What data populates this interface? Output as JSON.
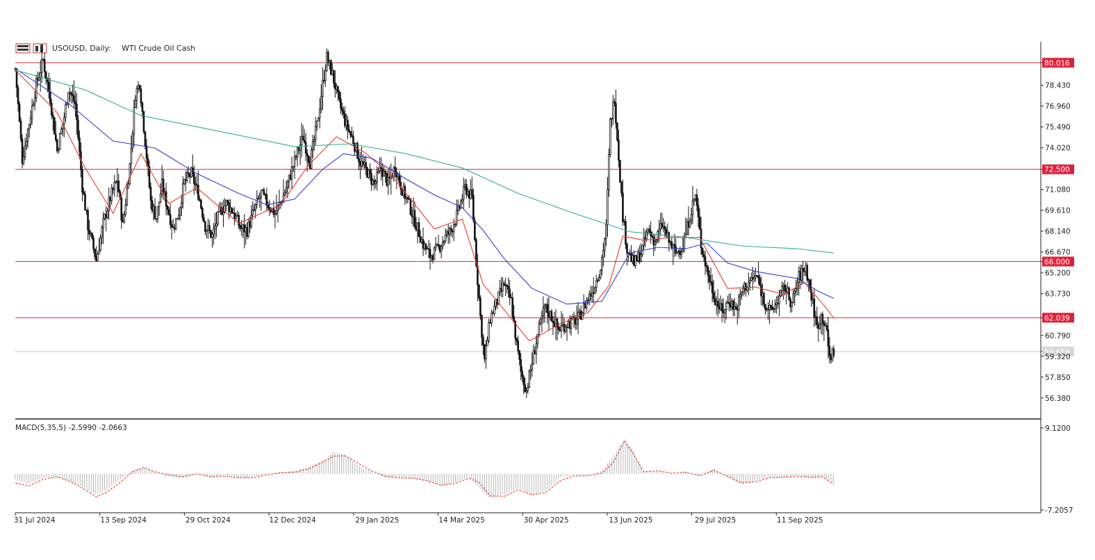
{
  "header": {
    "symbol": "USOUSD, Daily:",
    "name": "WTI Crude Oil Cash",
    "toolbar_icons": [
      "grid-icon",
      "chart-icon"
    ]
  },
  "chart_data": {
    "type": "candlestick",
    "symbol": "USOUSD",
    "timeframe": "Daily",
    "name": "WTI Crude Oil Cash",
    "ylim": [
      54.9,
      81.5
    ],
    "y_ticks": [
      "80.016",
      "78.430",
      "76.960",
      "75.490",
      "74.020",
      "72.500",
      "71.080",
      "69.610",
      "68.140",
      "66.670",
      "66.000",
      "65.200",
      "63.730",
      "62.039",
      "60.790",
      "59.659",
      "59.320",
      "57.850",
      "56.380"
    ],
    "x_ticks": [
      "31 Jul 2024",
      "13 Sep 2024",
      "29 Oct 2024",
      "12 Dec 2024",
      "29 Jan 2025",
      "14 Mar 2025",
      "30 Apr 2025",
      "13 Jun 2025",
      "29 Jul 2025",
      "11 Sep 2025"
    ],
    "horizontal_levels": [
      {
        "value": 80.016,
        "label": "80.016",
        "color": "#e0203a"
      },
      {
        "value": 72.5,
        "label": "72.500",
        "color": "#e0203a"
      },
      {
        "value": 66.0,
        "label": "66.000",
        "color": "#e0203a"
      },
      {
        "value": 62.039,
        "label": "62.039",
        "color": "#e0203a"
      }
    ],
    "current_price": {
      "value": 59.659,
      "label": "59.659"
    },
    "price_path": [
      [
        0,
        79.6
      ],
      [
        5,
        73.2
      ],
      [
        10,
        75.8
      ],
      [
        15,
        78.5
      ],
      [
        20,
        80.2
      ],
      [
        25,
        77.5
      ],
      [
        30,
        73.8
      ],
      [
        35,
        76.2
      ],
      [
        38,
        78.2
      ],
      [
        43,
        77.1
      ],
      [
        48,
        71.3
      ],
      [
        52,
        68.5
      ],
      [
        58,
        66.1
      ],
      [
        63,
        68.7
      ],
      [
        68,
        70.5
      ],
      [
        73,
        71.8
      ],
      [
        77,
        68.5
      ],
      [
        82,
        72.8
      ],
      [
        86,
        77.8
      ],
      [
        89,
        78.6
      ],
      [
        93,
        74.5
      ],
      [
        97,
        70.2
      ],
      [
        101,
        69.1
      ],
      [
        105,
        71.4
      ],
      [
        109,
        69.8
      ],
      [
        113,
        68.3
      ],
      [
        117,
        69.5
      ],
      [
        121,
        71.6
      ],
      [
        126,
        72.2
      ],
      [
        131,
        70.8
      ],
      [
        136,
        68.5
      ],
      [
        141,
        67.8
      ],
      [
        146,
        69.4
      ],
      [
        151,
        70.1
      ],
      [
        156,
        69.5
      ],
      [
        161,
        68.4
      ],
      [
        166,
        68.2
      ],
      [
        171,
        69.6
      ],
      [
        176,
        70.8
      ],
      [
        181,
        70.0
      ],
      [
        186,
        69.4
      ],
      [
        191,
        70.4
      ],
      [
        196,
        71.8
      ],
      [
        201,
        73.4
      ],
      [
        206,
        74.8
      ],
      [
        211,
        73.0
      ],
      [
        216,
        75.6
      ],
      [
        220,
        78.5
      ],
      [
        223,
        80.4
      ],
      [
        227,
        79.2
      ],
      [
        232,
        77.1
      ],
      [
        237,
        75.6
      ],
      [
        242,
        74.5
      ],
      [
        247,
        73.0
      ],
      [
        252,
        72.3
      ],
      [
        257,
        71.4
      ],
      [
        262,
        72.6
      ],
      [
        267,
        71.5
      ],
      [
        272,
        72.7
      ],
      [
        277,
        71.1
      ],
      [
        282,
        70.0
      ],
      [
        287,
        68.6
      ],
      [
        292,
        67.2
      ],
      [
        297,
        66.4
      ],
      [
        302,
        66.8
      ],
      [
        307,
        67.6
      ],
      [
        312,
        68.2
      ],
      [
        317,
        69.5
      ],
      [
        322,
        71.2
      ],
      [
        327,
        70.5
      ],
      [
        330,
        66.0
      ],
      [
        333,
        62.1
      ],
      [
        336,
        59.0
      ],
      [
        340,
        62.0
      ],
      [
        345,
        63.2
      ],
      [
        350,
        64.4
      ],
      [
        355,
        63.2
      ],
      [
        359,
        60.1
      ],
      [
        362,
        58.2
      ],
      [
        366,
        56.9
      ],
      [
        370,
        58.9
      ],
      [
        374,
        60.8
      ],
      [
        379,
        62.8
      ],
      [
        384,
        62.1
      ],
      [
        389,
        61.2
      ],
      [
        394,
        61.6
      ],
      [
        399,
        61.7
      ],
      [
        404,
        62.1
      ],
      [
        409,
        63.2
      ],
      [
        414,
        64.1
      ],
      [
        419,
        65.6
      ],
      [
        423,
        68.3
      ],
      [
        426,
        75.8
      ],
      [
        429,
        77.6
      ],
      [
        432,
        73.4
      ],
      [
        435,
        69.2
      ],
      [
        438,
        66.9
      ],
      [
        443,
        65.8
      ],
      [
        448,
        66.6
      ],
      [
        453,
        68.2
      ],
      [
        458,
        67.4
      ],
      [
        463,
        68.6
      ],
      [
        468,
        67.4
      ],
      [
        473,
        66.6
      ],
      [
        478,
        67.1
      ],
      [
        483,
        69.3
      ],
      [
        487,
        70.7
      ],
      [
        491,
        67.2
      ],
      [
        496,
        65.1
      ],
      [
        501,
        63.4
      ],
      [
        506,
        62.4
      ],
      [
        511,
        63.3
      ],
      [
        516,
        62.6
      ],
      [
        521,
        64.1
      ],
      [
        526,
        64.6
      ],
      [
        531,
        65.0
      ],
      [
        536,
        63.2
      ],
      [
        541,
        62.4
      ],
      [
        546,
        63.3
      ],
      [
        551,
        64.2
      ],
      [
        556,
        63.0
      ],
      [
        561,
        64.9
      ],
      [
        566,
        65.6
      ],
      [
        571,
        63.0
      ],
      [
        574,
        61.4
      ],
      [
        577,
        62.2
      ],
      [
        580,
        61.6
      ],
      [
        583,
        59.2
      ],
      [
        586,
        59.7
      ]
    ],
    "series": [
      {
        "name": "",
        "color": "#e8392f",
        "kind": "ma",
        "points": [
          [
            0,
            79.5
          ],
          [
            30,
            76.5
          ],
          [
            50,
            72.6
          ],
          [
            70,
            69.4
          ],
          [
            90,
            73.6
          ],
          [
            110,
            70.1
          ],
          [
            130,
            71.2
          ],
          [
            160,
            68.7
          ],
          [
            190,
            70.0
          ],
          [
            210,
            72.8
          ],
          [
            230,
            74.8
          ],
          [
            250,
            73.7
          ],
          [
            270,
            72.0
          ],
          [
            300,
            68.3
          ],
          [
            320,
            69.0
          ],
          [
            335,
            64.4
          ],
          [
            350,
            62.6
          ],
          [
            368,
            60.4
          ],
          [
            390,
            61.6
          ],
          [
            410,
            62.4
          ],
          [
            425,
            64.3
          ],
          [
            435,
            67.8
          ],
          [
            450,
            67.5
          ],
          [
            470,
            67.7
          ],
          [
            490,
            67.7
          ],
          [
            510,
            64.1
          ],
          [
            530,
            64.2
          ],
          [
            550,
            63.7
          ],
          [
            565,
            64.5
          ],
          [
            580,
            62.8
          ],
          [
            586,
            62.0
          ]
        ]
      },
      {
        "name": "",
        "color": "#3a3ad4",
        "kind": "ma",
        "points": [
          [
            0,
            79.6
          ],
          [
            40,
            77.0
          ],
          [
            70,
            74.5
          ],
          [
            100,
            74.0
          ],
          [
            130,
            72.2
          ],
          [
            160,
            70.8
          ],
          [
            180,
            70.0
          ],
          [
            200,
            70.4
          ],
          [
            220,
            72.5
          ],
          [
            235,
            73.6
          ],
          [
            255,
            73.3
          ],
          [
            280,
            71.8
          ],
          [
            300,
            70.7
          ],
          [
            320,
            69.8
          ],
          [
            335,
            68.2
          ],
          [
            350,
            66.2
          ],
          [
            370,
            64.1
          ],
          [
            395,
            63.0
          ],
          [
            420,
            63.2
          ],
          [
            440,
            66.6
          ],
          [
            460,
            67.0
          ],
          [
            480,
            66.9
          ],
          [
            495,
            67.3
          ],
          [
            510,
            65.9
          ],
          [
            530,
            65.3
          ],
          [
            560,
            64.8
          ],
          [
            575,
            63.9
          ],
          [
            586,
            63.4
          ]
        ]
      },
      {
        "name": "",
        "color": "#2fae96",
        "kind": "ma",
        "points": [
          [
            0,
            79.5
          ],
          [
            50,
            78.1
          ],
          [
            90,
            76.3
          ],
          [
            140,
            75.3
          ],
          [
            200,
            74.1
          ],
          [
            240,
            74.3
          ],
          [
            280,
            73.6
          ],
          [
            320,
            72.6
          ],
          [
            360,
            70.8
          ],
          [
            400,
            69.4
          ],
          [
            440,
            68.1
          ],
          [
            480,
            67.7
          ],
          [
            520,
            67.1
          ],
          [
            560,
            66.9
          ],
          [
            586,
            66.6
          ]
        ]
      }
    ],
    "macd": {
      "label": "MACD(5,35,5) -2.5990 -2.0663",
      "ylim": [
        -7.2057,
        9.12
      ],
      "y_ticks": [
        "9.1200",
        "-7.2057"
      ],
      "histogram": [
        [
          0,
          -1.2
        ],
        [
          10,
          -2.0
        ],
        [
          20,
          -0.7
        ],
        [
          30,
          -0.6
        ],
        [
          40,
          -1.6
        ],
        [
          50,
          -2.9
        ],
        [
          58,
          -4.1
        ],
        [
          66,
          -3.0
        ],
        [
          74,
          -1.3
        ],
        [
          84,
          0.7
        ],
        [
          92,
          1.3
        ],
        [
          100,
          0.3
        ],
        [
          110,
          -0.5
        ],
        [
          120,
          -0.8
        ],
        [
          130,
          0.1
        ],
        [
          140,
          -0.7
        ],
        [
          150,
          -0.3
        ],
        [
          160,
          -0.9
        ],
        [
          170,
          -0.6
        ],
        [
          180,
          -0.1
        ],
        [
          190,
          0.3
        ],
        [
          200,
          0.6
        ],
        [
          210,
          1.4
        ],
        [
          220,
          2.6
        ],
        [
          228,
          4.4
        ],
        [
          236,
          3.8
        ],
        [
          245,
          1.7
        ],
        [
          255,
          0.4
        ],
        [
          265,
          -0.8
        ],
        [
          275,
          -0.7
        ],
        [
          285,
          -0.9
        ],
        [
          295,
          -1.5
        ],
        [
          305,
          -2.4
        ],
        [
          315,
          -1.7
        ],
        [
          325,
          -0.7
        ],
        [
          332,
          -2.8
        ],
        [
          340,
          -4.9
        ],
        [
          350,
          -4.1
        ],
        [
          360,
          -2.8
        ],
        [
          370,
          -4.3
        ],
        [
          380,
          -3.3
        ],
        [
          390,
          -0.6
        ],
        [
          400,
          -0.2
        ],
        [
          410,
          -0.3
        ],
        [
          420,
          0.6
        ],
        [
          428,
          3.6
        ],
        [
          436,
          6.9
        ],
        [
          442,
          4.8
        ],
        [
          450,
          0.3
        ],
        [
          460,
          0.4
        ],
        [
          470,
          -0.1
        ],
        [
          480,
          0.4
        ],
        [
          490,
          -0.5
        ],
        [
          500,
          1.1
        ],
        [
          510,
          -0.8
        ],
        [
          520,
          -2.1
        ],
        [
          530,
          -1.4
        ],
        [
          540,
          -0.6
        ],
        [
          550,
          -0.8
        ],
        [
          560,
          -0.3
        ],
        [
          570,
          -0.9
        ],
        [
          578,
          -0.5
        ],
        [
          586,
          -1.9
        ]
      ],
      "signal": [
        [
          0,
          -1.8
        ],
        [
          10,
          -2.4
        ],
        [
          20,
          -1.1
        ],
        [
          30,
          -0.6
        ],
        [
          40,
          -1.6
        ],
        [
          50,
          -3.2
        ],
        [
          58,
          -4.6
        ],
        [
          66,
          -3.6
        ],
        [
          74,
          -1.9
        ],
        [
          84,
          0.4
        ],
        [
          92,
          1.3
        ],
        [
          100,
          0.4
        ],
        [
          110,
          -0.2
        ],
        [
          120,
          -0.6
        ],
        [
          130,
          0.0
        ],
        [
          140,
          -0.6
        ],
        [
          150,
          -0.5
        ],
        [
          160,
          -0.8
        ],
        [
          170,
          -0.8
        ],
        [
          180,
          -0.2
        ],
        [
          190,
          0.2
        ],
        [
          200,
          0.3
        ],
        [
          210,
          1.0
        ],
        [
          220,
          2.3
        ],
        [
          228,
          3.5
        ],
        [
          236,
          3.6
        ],
        [
          245,
          2.2
        ],
        [
          255,
          0.6
        ],
        [
          265,
          -0.5
        ],
        [
          275,
          -0.8
        ],
        [
          285,
          -0.9
        ],
        [
          295,
          -1.4
        ],
        [
          305,
          -2.3
        ],
        [
          315,
          -1.9
        ],
        [
          325,
          -0.9
        ],
        [
          332,
          -1.7
        ],
        [
          340,
          -4.4
        ],
        [
          350,
          -4.5
        ],
        [
          360,
          -3.2
        ],
        [
          370,
          -4.2
        ],
        [
          380,
          -3.7
        ],
        [
          390,
          -1.4
        ],
        [
          400,
          -0.4
        ],
        [
          410,
          -0.4
        ],
        [
          420,
          0.1
        ],
        [
          428,
          2.2
        ],
        [
          436,
          6.5
        ],
        [
          442,
          4.2
        ],
        [
          450,
          0.4
        ],
        [
          460,
          0.6
        ],
        [
          470,
          0.1
        ],
        [
          480,
          0.3
        ],
        [
          490,
          -0.4
        ],
        [
          500,
          0.7
        ],
        [
          510,
          -0.5
        ],
        [
          520,
          -1.8
        ],
        [
          530,
          -1.6
        ],
        [
          540,
          -0.8
        ],
        [
          550,
          -0.7
        ],
        [
          560,
          -0.5
        ],
        [
          570,
          -0.7
        ],
        [
          578,
          -0.6
        ],
        [
          586,
          -2.07
        ]
      ]
    }
  }
}
